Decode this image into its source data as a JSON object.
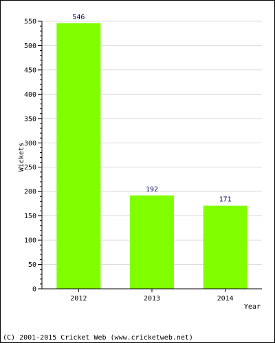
{
  "chart_data": {
    "type": "bar",
    "categories": [
      "2012",
      "2013",
      "2014"
    ],
    "values": [
      546,
      192,
      171
    ],
    "data_labels": [
      "546",
      "192",
      "171"
    ],
    "xlabel": "Year",
    "ylabel": "Wickets",
    "ylim": [
      0,
      550
    ],
    "yticks": [
      0,
      50,
      100,
      150,
      200,
      250,
      300,
      350,
      400,
      450,
      500,
      550
    ],
    "grid": true,
    "bar_color": "#80ff00",
    "label_color": "#000066",
    "grid_color": "#dddddd"
  },
  "footer": {
    "copyright": "(C) 2001-2015 Cricket Web (www.cricketweb.net)"
  }
}
